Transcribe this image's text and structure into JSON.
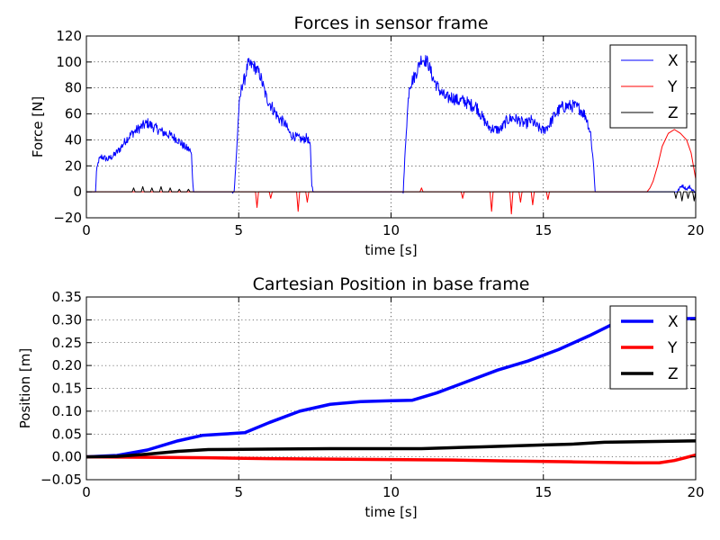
{
  "chart_data": [
    {
      "type": "line",
      "title": "Forces in sensor frame",
      "xlabel": "time [s]",
      "ylabel": "Force [N]",
      "xlim": [
        0,
        20
      ],
      "ylim": [
        -20,
        120
      ],
      "xticks": [
        0,
        5,
        10,
        15,
        20
      ],
      "yticks": [
        -20,
        0,
        20,
        40,
        60,
        80,
        100,
        120
      ],
      "grid": true,
      "legend_position": "top-right",
      "series": [
        {
          "name": "X",
          "color": "#0000ff",
          "linewidth": "thin",
          "noisy": true,
          "points": [
            [
              0,
              0
            ],
            [
              0.3,
              0
            ],
            [
              0.33,
              15
            ],
            [
              0.4,
              24
            ],
            [
              0.5,
              27
            ],
            [
              0.7,
              25
            ],
            [
              0.9,
              28
            ],
            [
              1.1,
              33
            ],
            [
              1.3,
              40
            ],
            [
              1.5,
              45
            ],
            [
              1.8,
              50
            ],
            [
              2.0,
              53
            ],
            [
              2.2,
              50
            ],
            [
              2.5,
              46
            ],
            [
              2.8,
              43
            ],
            [
              3.0,
              40
            ],
            [
              3.2,
              35
            ],
            [
              3.4,
              32
            ],
            [
              3.45,
              28
            ],
            [
              3.5,
              4
            ],
            [
              3.52,
              0
            ],
            [
              4.8,
              0
            ],
            [
              4.85,
              0.5
            ],
            [
              4.9,
              18
            ],
            [
              5.0,
              62
            ],
            [
              5.1,
              82
            ],
            [
              5.2,
              87
            ],
            [
              5.3,
              98
            ],
            [
              5.5,
              97
            ],
            [
              5.7,
              90
            ],
            [
              5.9,
              73
            ],
            [
              6.1,
              65
            ],
            [
              6.3,
              57
            ],
            [
              6.5,
              53
            ],
            [
              6.7,
              44
            ],
            [
              6.9,
              42
            ],
            [
              7.1,
              40
            ],
            [
              7.25,
              42
            ],
            [
              7.35,
              34
            ],
            [
              7.4,
              5
            ],
            [
              7.45,
              0
            ],
            [
              10.4,
              0
            ],
            [
              10.5,
              48
            ],
            [
              10.6,
              82
            ],
            [
              10.8,
              90
            ],
            [
              11.0,
              103
            ],
            [
              11.2,
              100
            ],
            [
              11.4,
              86
            ],
            [
              11.6,
              78
            ],
            [
              11.8,
              72
            ],
            [
              12.0,
              73
            ],
            [
              12.2,
              70
            ],
            [
              12.4,
              70
            ],
            [
              12.6,
              67
            ],
            [
              12.8,
              66
            ],
            [
              13.0,
              57
            ],
            [
              13.2,
              50
            ],
            [
              13.4,
              48
            ],
            [
              13.6,
              48
            ],
            [
              13.8,
              55
            ],
            [
              14.0,
              57
            ],
            [
              14.2,
              55
            ],
            [
              14.4,
              52
            ],
            [
              14.6,
              55
            ],
            [
              14.8,
              50
            ],
            [
              15.0,
              47
            ],
            [
              15.2,
              52
            ],
            [
              15.4,
              60
            ],
            [
              15.6,
              65
            ],
            [
              15.8,
              66
            ],
            [
              16.0,
              66
            ],
            [
              16.2,
              64
            ],
            [
              16.4,
              58
            ],
            [
              16.55,
              45
            ],
            [
              16.65,
              20
            ],
            [
              16.7,
              0
            ],
            [
              19.4,
              0
            ],
            [
              19.45,
              2
            ],
            [
              19.55,
              5
            ],
            [
              19.7,
              2
            ],
            [
              19.8,
              4
            ],
            [
              19.9,
              1
            ],
            [
              20,
              0
            ]
          ]
        },
        {
          "name": "Y",
          "color": "#ff0000",
          "linewidth": "thin",
          "noisy": false,
          "points": [
            [
              0,
              0
            ],
            [
              5.55,
              0
            ],
            [
              5.6,
              -12
            ],
            [
              5.65,
              0
            ],
            [
              6.0,
              0
            ],
            [
              6.05,
              -5
            ],
            [
              6.1,
              0
            ],
            [
              6.9,
              0
            ],
            [
              6.95,
              -15
            ],
            [
              7.0,
              0
            ],
            [
              7.2,
              0
            ],
            [
              7.25,
              -8
            ],
            [
              7.3,
              0
            ],
            [
              10.95,
              0
            ],
            [
              11.0,
              3
            ],
            [
              11.05,
              0
            ],
            [
              12.3,
              0
            ],
            [
              12.35,
              -5
            ],
            [
              12.4,
              0
            ],
            [
              13.25,
              0
            ],
            [
              13.3,
              -15
            ],
            [
              13.35,
              0
            ],
            [
              13.9,
              0
            ],
            [
              13.95,
              -17
            ],
            [
              14.0,
              0
            ],
            [
              14.2,
              0
            ],
            [
              14.25,
              -8
            ],
            [
              14.3,
              0
            ],
            [
              14.6,
              0
            ],
            [
              14.65,
              -10
            ],
            [
              14.7,
              0
            ],
            [
              15.1,
              0
            ],
            [
              15.15,
              -6
            ],
            [
              15.2,
              0
            ],
            [
              18.4,
              0
            ],
            [
              18.5,
              3
            ],
            [
              18.6,
              8
            ],
            [
              18.75,
              20
            ],
            [
              18.9,
              35
            ],
            [
              19.1,
              45
            ],
            [
              19.3,
              48
            ],
            [
              19.5,
              45
            ],
            [
              19.7,
              40
            ],
            [
              19.85,
              30
            ],
            [
              20,
              10
            ]
          ]
        },
        {
          "name": "Z",
          "color": "#000000",
          "linewidth": "thin",
          "noisy": false,
          "points": [
            [
              0,
              0
            ],
            [
              1.5,
              0
            ],
            [
              1.55,
              3
            ],
            [
              1.6,
              0
            ],
            [
              1.8,
              0
            ],
            [
              1.85,
              4
            ],
            [
              1.9,
              0
            ],
            [
              2.1,
              0
            ],
            [
              2.15,
              3
            ],
            [
              2.2,
              0
            ],
            [
              2.4,
              0
            ],
            [
              2.45,
              4
            ],
            [
              2.5,
              0
            ],
            [
              2.7,
              0
            ],
            [
              2.75,
              3
            ],
            [
              2.8,
              0
            ],
            [
              3.0,
              0
            ],
            [
              3.05,
              2
            ],
            [
              3.1,
              0
            ],
            [
              3.3,
              0
            ],
            [
              3.35,
              2
            ],
            [
              3.4,
              0
            ],
            [
              19.3,
              0
            ],
            [
              19.35,
              -5
            ],
            [
              19.4,
              0
            ],
            [
              19.5,
              0
            ],
            [
              19.55,
              -7
            ],
            [
              19.6,
              0
            ],
            [
              19.7,
              0
            ],
            [
              19.75,
              -5
            ],
            [
              19.8,
              0
            ],
            [
              19.9,
              0
            ],
            [
              19.95,
              -7
            ],
            [
              20,
              0
            ]
          ]
        }
      ]
    },
    {
      "type": "line",
      "title": "Cartesian Position in base frame",
      "xlabel": "time [s]",
      "ylabel": "Position [m]",
      "xlim": [
        0,
        20
      ],
      "ylim": [
        -0.05,
        0.35
      ],
      "xticks": [
        0,
        5,
        10,
        15,
        20
      ],
      "yticks": [
        -0.05,
        0.0,
        0.05,
        0.1,
        0.15,
        0.2,
        0.25,
        0.3,
        0.35
      ],
      "ytick_labels": [
        "−0.05",
        "0.00",
        "0.05",
        "0.10",
        "0.15",
        "0.20",
        "0.25",
        "0.30",
        "0.35"
      ],
      "grid": true,
      "legend_position": "top-right",
      "series": [
        {
          "name": "X",
          "color": "#0000ff",
          "linewidth": "thick",
          "noisy": false,
          "points": [
            [
              0,
              0
            ],
            [
              1.0,
              0.003
            ],
            [
              2.0,
              0.015
            ],
            [
              3.0,
              0.035
            ],
            [
              3.8,
              0.047
            ],
            [
              4.5,
              0.05
            ],
            [
              5.2,
              0.053
            ],
            [
              6.0,
              0.075
            ],
            [
              7.0,
              0.1
            ],
            [
              8.0,
              0.115
            ],
            [
              9.0,
              0.121
            ],
            [
              10.0,
              0.123
            ],
            [
              10.7,
              0.124
            ],
            [
              11.5,
              0.14
            ],
            [
              12.5,
              0.165
            ],
            [
              13.5,
              0.19
            ],
            [
              14.5,
              0.21
            ],
            [
              15.5,
              0.235
            ],
            [
              16.5,
              0.265
            ],
            [
              17.2,
              0.288
            ],
            [
              18.0,
              0.3
            ],
            [
              18.5,
              0.302
            ],
            [
              20,
              0.303
            ]
          ]
        },
        {
          "name": "Y",
          "color": "#ff0000",
          "linewidth": "thick",
          "noisy": false,
          "points": [
            [
              0,
              0
            ],
            [
              2.0,
              -0.001
            ],
            [
              4.0,
              -0.002
            ],
            [
              6.0,
              -0.004
            ],
            [
              8.0,
              -0.005
            ],
            [
              10.0,
              -0.006
            ],
            [
              12.0,
              -0.007
            ],
            [
              14.0,
              -0.009
            ],
            [
              16.0,
              -0.011
            ],
            [
              18.0,
              -0.013
            ],
            [
              18.8,
              -0.013
            ],
            [
              19.3,
              -0.008
            ],
            [
              20,
              0.004
            ]
          ]
        },
        {
          "name": "Z",
          "color": "#000000",
          "linewidth": "thick",
          "noisy": false,
          "points": [
            [
              0,
              0
            ],
            [
              1.0,
              0.001
            ],
            [
              2.0,
              0.006
            ],
            [
              3.0,
              0.012
            ],
            [
              4.0,
              0.016
            ],
            [
              6.0,
              0.017
            ],
            [
              8.0,
              0.018
            ],
            [
              10.0,
              0.018
            ],
            [
              11.0,
              0.018
            ],
            [
              13.0,
              0.022
            ],
            [
              15.0,
              0.026
            ],
            [
              16.0,
              0.028
            ],
            [
              17.0,
              0.032
            ],
            [
              18.0,
              0.033
            ],
            [
              20,
              0.035
            ]
          ]
        }
      ]
    }
  ]
}
